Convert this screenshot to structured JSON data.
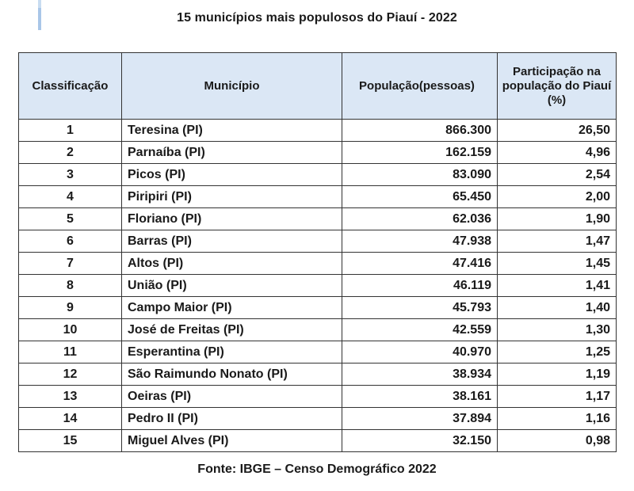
{
  "title": "15 municípios mais populosos do Piauí - 2022",
  "headers": {
    "rank": "Classificação",
    "municipality": "Município",
    "population": "População(pessoas)",
    "share": "Participação na população do Piauí (%)"
  },
  "rows": [
    {
      "rank": "1",
      "municipality": "Teresina (PI)",
      "population": "866.300",
      "share": "26,50"
    },
    {
      "rank": "2",
      "municipality": "Parnaíba (PI)",
      "population": "162.159",
      "share": "4,96"
    },
    {
      "rank": "3",
      "municipality": "Picos (PI)",
      "population": "83.090",
      "share": "2,54"
    },
    {
      "rank": "4",
      "municipality": "Piripiri (PI)",
      "population": "65.450",
      "share": "2,00"
    },
    {
      "rank": "5",
      "municipality": "Floriano (PI)",
      "population": "62.036",
      "share": "1,90"
    },
    {
      "rank": "6",
      "municipality": "Barras (PI)",
      "population": "47.938",
      "share": "1,47"
    },
    {
      "rank": "7",
      "municipality": "Altos (PI)",
      "population": "47.416",
      "share": "1,45"
    },
    {
      "rank": "8",
      "municipality": "União (PI)",
      "population": "46.119",
      "share": "1,41"
    },
    {
      "rank": "9",
      "municipality": "Campo Maior (PI)",
      "population": "45.793",
      "share": "1,40"
    },
    {
      "rank": "10",
      "municipality": "José de Freitas (PI)",
      "population": "42.559",
      "share": "1,30"
    },
    {
      "rank": "11",
      "municipality": "Esperantina (PI)",
      "population": "40.970",
      "share": "1,25"
    },
    {
      "rank": "12",
      "municipality": "São Raimundo Nonato (PI)",
      "population": "38.934",
      "share": "1,19"
    },
    {
      "rank": "13",
      "municipality": "Oeiras (PI)",
      "population": "38.161",
      "share": "1,17"
    },
    {
      "rank": "14",
      "municipality": "Pedro II (PI)",
      "population": "37.894",
      "share": "1,16"
    },
    {
      "rank": "15",
      "municipality": "Miguel Alves (PI)",
      "population": "32.150",
      "share": "0,98"
    }
  ],
  "source": "Fonte: IBGE – Censo Demográfico 2022",
  "colors": {
    "header_bg": "#dbe7f5",
    "accent": "#a9c6e8",
    "border": "#333333"
  }
}
